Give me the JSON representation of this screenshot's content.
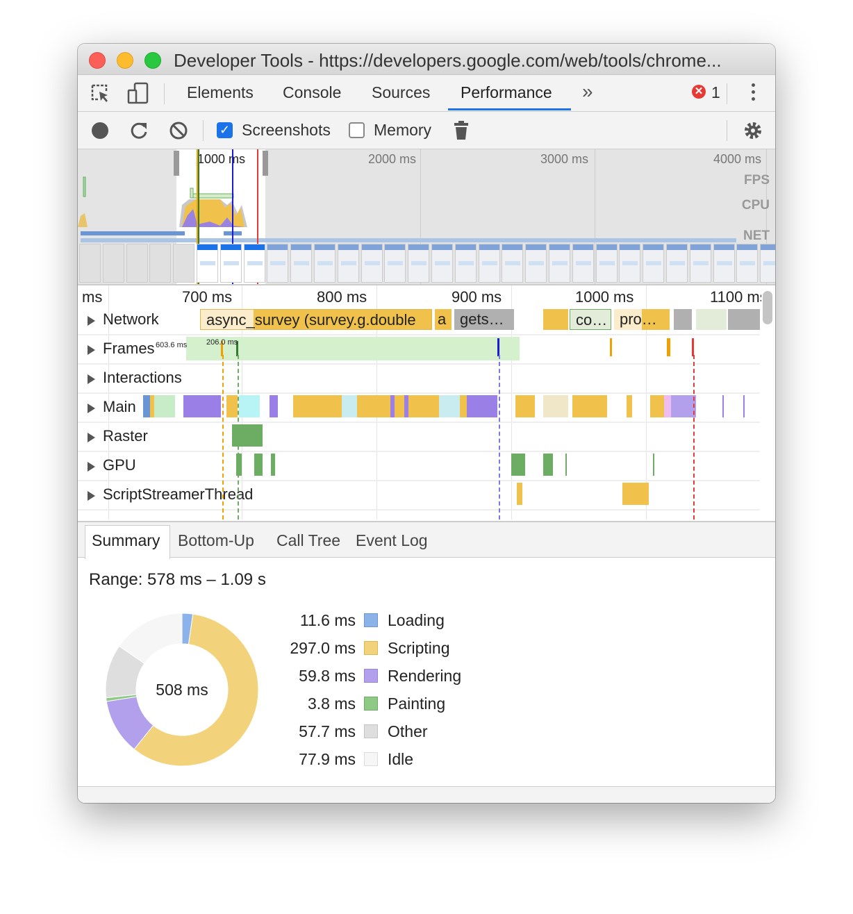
{
  "window": {
    "title": "Developer Tools - https://developers.google.com/web/tools/chrome..."
  },
  "tabs": [
    {
      "label": "Elements"
    },
    {
      "label": "Console"
    },
    {
      "label": "Sources"
    },
    {
      "label": "Performance",
      "active": true
    }
  ],
  "more_tabs_icon": "chevron-double-right-icon",
  "error_count": "1",
  "toolbar": {
    "screenshots_label": "Screenshots",
    "screenshots_checked": true,
    "memory_label": "Memory",
    "memory_checked": false
  },
  "overview": {
    "ticks": [
      "1000 ms",
      "2000 ms",
      "3000 ms",
      "4000 ms"
    ],
    "labels": {
      "fps": "FPS",
      "cpu": "CPU",
      "net": "NET"
    }
  },
  "flame": {
    "ticks": [
      "ms",
      "700 ms",
      "800 ms",
      "900 ms",
      "1000 ms",
      "1100 ms"
    ],
    "tracks": [
      "Network",
      "Frames",
      "Interactions",
      "Main",
      "Raster",
      "GPU",
      "ScriptStreamerThread"
    ],
    "network_items": [
      "async_survey (survey.g.double",
      "a",
      "gets…",
      "co…",
      "pro…"
    ],
    "frame_labels": [
      "603.6 ms",
      "206.0 ms"
    ]
  },
  "bottom_tabs": [
    {
      "label": "Summary",
      "active": true
    },
    {
      "label": "Bottom-Up"
    },
    {
      "label": "Call Tree"
    },
    {
      "label": "Event Log"
    }
  ],
  "summary": {
    "range": "Range: 578 ms – 1.09 s",
    "total": "508 ms",
    "items": [
      {
        "value": "11.6 ms",
        "ms": 11.6,
        "label": "Loading",
        "color": "#8cb2ea",
        "border": "#6b96d6"
      },
      {
        "value": "297.0 ms",
        "ms": 297.0,
        "label": "Scripting",
        "color": "#f2d27a",
        "border": "#e3b54d"
      },
      {
        "value": "59.8 ms",
        "ms": 59.8,
        "label": "Rendering",
        "color": "#b2a0ec",
        "border": "#9a82e0"
      },
      {
        "value": "3.8 ms",
        "ms": 3.8,
        "label": "Painting",
        "color": "#8ec985",
        "border": "#6cad63"
      },
      {
        "value": "57.7 ms",
        "ms": 57.7,
        "label": "Other",
        "color": "#dedede",
        "border": "#c4c4c4"
      },
      {
        "value": "77.9 ms",
        "ms": 77.9,
        "label": "Idle",
        "color": "#f6f6f6",
        "border": "#dcdcdc"
      }
    ]
  }
}
